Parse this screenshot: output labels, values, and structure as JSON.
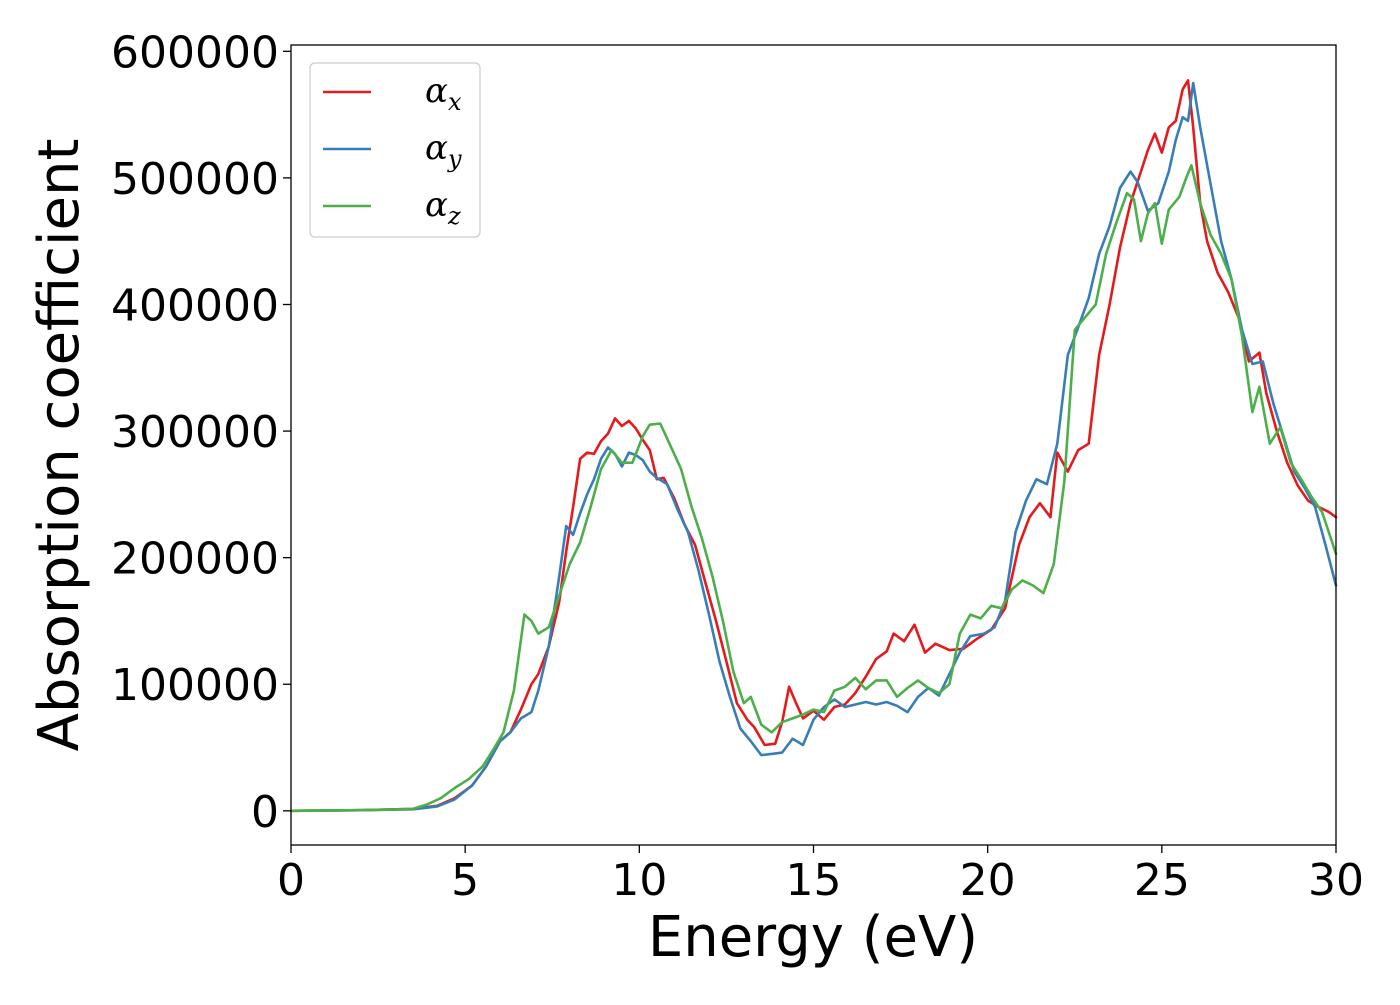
{
  "chart_data": {
    "type": "line",
    "title": "",
    "xlabel": "Energy (eV)",
    "ylabel": "Absorption coefficient",
    "xlim": [
      0,
      30
    ],
    "ylim": [
      -27000,
      605000
    ],
    "x_ticks": [
      0,
      5,
      10,
      15,
      20,
      25,
      30
    ],
    "x_tick_labels": [
      "0",
      "5",
      "10",
      "15",
      "20",
      "25",
      "30"
    ],
    "y_ticks": [
      0,
      100000,
      200000,
      300000,
      400000,
      500000,
      600000
    ],
    "y_tick_labels": [
      "0",
      "100000",
      "200000",
      "300000",
      "400000",
      "500000",
      "600000"
    ],
    "grid": false,
    "legend_position": "top-left",
    "series": [
      {
        "name": "αx",
        "symbol": "α",
        "subscript": "x",
        "color": "#e41a1c",
        "points": [
          [
            0,
            0
          ],
          [
            2,
            500
          ],
          [
            3.5,
            1500
          ],
          [
            4.2,
            4000
          ],
          [
            4.7,
            10000
          ],
          [
            5.2,
            20000
          ],
          [
            5.6,
            35000
          ],
          [
            6,
            55000
          ],
          [
            6.3,
            62000
          ],
          [
            6.6,
            80000
          ],
          [
            6.9,
            100000
          ],
          [
            7.1,
            108000
          ],
          [
            7.4,
            130000
          ],
          [
            7.7,
            165000
          ],
          [
            7.9,
            205000
          ],
          [
            8.1,
            240000
          ],
          [
            8.3,
            278000
          ],
          [
            8.5,
            283000
          ],
          [
            8.7,
            282000
          ],
          [
            8.9,
            292000
          ],
          [
            9.1,
            298000
          ],
          [
            9.3,
            310000
          ],
          [
            9.5,
            304000
          ],
          [
            9.7,
            308000
          ],
          [
            9.9,
            302000
          ],
          [
            10.1,
            293000
          ],
          [
            10.3,
            285000
          ],
          [
            10.5,
            262000
          ],
          [
            10.7,
            263000
          ],
          [
            11,
            247000
          ],
          [
            11.3,
            226000
          ],
          [
            11.6,
            210000
          ],
          [
            11.9,
            180000
          ],
          [
            12.2,
            150000
          ],
          [
            12.5,
            118000
          ],
          [
            12.8,
            85000
          ],
          [
            13.1,
            72000
          ],
          [
            13.3,
            66000
          ],
          [
            13.6,
            52000
          ],
          [
            13.9,
            53000
          ],
          [
            14.1,
            70000
          ],
          [
            14.3,
            98000
          ],
          [
            14.5,
            85000
          ],
          [
            14.7,
            73000
          ],
          [
            15,
            79000
          ],
          [
            15.3,
            72000
          ],
          [
            15.6,
            82000
          ],
          [
            15.9,
            84000
          ],
          [
            16.2,
            93000
          ],
          [
            16.5,
            106000
          ],
          [
            16.8,
            120000
          ],
          [
            17.1,
            126000
          ],
          [
            17.3,
            140000
          ],
          [
            17.6,
            134000
          ],
          [
            17.9,
            147000
          ],
          [
            18.2,
            125000
          ],
          [
            18.5,
            132000
          ],
          [
            18.9,
            127000
          ],
          [
            19.3,
            128000
          ],
          [
            19.7,
            136000
          ],
          [
            20.1,
            143000
          ],
          [
            20.5,
            160000
          ],
          [
            20.9,
            210000
          ],
          [
            21.2,
            232000
          ],
          [
            21.5,
            243000
          ],
          [
            21.8,
            232000
          ],
          [
            22,
            283000
          ],
          [
            22.3,
            268000
          ],
          [
            22.6,
            285000
          ],
          [
            22.9,
            290000
          ],
          [
            23.2,
            360000
          ],
          [
            23.5,
            400000
          ],
          [
            23.8,
            445000
          ],
          [
            24.1,
            480000
          ],
          [
            24.4,
            505000
          ],
          [
            24.6,
            522000
          ],
          [
            24.8,
            535000
          ],
          [
            25,
            520000
          ],
          [
            25.2,
            540000
          ],
          [
            25.4,
            545000
          ],
          [
            25.6,
            570000
          ],
          [
            25.75,
            577000
          ],
          [
            25.9,
            540000
          ],
          [
            26.1,
            480000
          ],
          [
            26.3,
            450000
          ],
          [
            26.6,
            425000
          ],
          [
            26.9,
            410000
          ],
          [
            27.2,
            390000
          ],
          [
            27.5,
            355000
          ],
          [
            27.8,
            362000
          ],
          [
            28,
            330000
          ],
          [
            28.3,
            300000
          ],
          [
            28.6,
            275000
          ],
          [
            28.9,
            257000
          ],
          [
            29.2,
            245000
          ],
          [
            29.5,
            240000
          ],
          [
            29.8,
            236000
          ],
          [
            30,
            232000
          ]
        ]
      },
      {
        "name": "αy",
        "symbol": "α",
        "subscript": "y",
        "color": "#377eb8",
        "points": [
          [
            0,
            0
          ],
          [
            2,
            500
          ],
          [
            3.5,
            1200
          ],
          [
            4.2,
            3500
          ],
          [
            4.7,
            9000
          ],
          [
            5.2,
            20000
          ],
          [
            5.6,
            35000
          ],
          [
            6,
            55000
          ],
          [
            6.3,
            62000
          ],
          [
            6.6,
            73000
          ],
          [
            6.9,
            78000
          ],
          [
            7.1,
            95000
          ],
          [
            7.4,
            130000
          ],
          [
            7.7,
            185000
          ],
          [
            7.9,
            225000
          ],
          [
            8.1,
            218000
          ],
          [
            8.3,
            235000
          ],
          [
            8.5,
            250000
          ],
          [
            8.7,
            262000
          ],
          [
            8.9,
            278000
          ],
          [
            9.1,
            287000
          ],
          [
            9.3,
            282000
          ],
          [
            9.5,
            272000
          ],
          [
            9.7,
            283000
          ],
          [
            9.9,
            281000
          ],
          [
            10.1,
            277000
          ],
          [
            10.3,
            268000
          ],
          [
            10.5,
            263000
          ],
          [
            10.8,
            258000
          ],
          [
            11.1,
            238000
          ],
          [
            11.4,
            220000
          ],
          [
            11.7,
            190000
          ],
          [
            12,
            155000
          ],
          [
            12.3,
            118000
          ],
          [
            12.6,
            90000
          ],
          [
            12.9,
            65000
          ],
          [
            13.2,
            55000
          ],
          [
            13.5,
            44000
          ],
          [
            13.8,
            45000
          ],
          [
            14.1,
            46000
          ],
          [
            14.4,
            57000
          ],
          [
            14.7,
            52000
          ],
          [
            15,
            72000
          ],
          [
            15.3,
            82000
          ],
          [
            15.6,
            88000
          ],
          [
            15.9,
            82000
          ],
          [
            16.2,
            84000
          ],
          [
            16.5,
            86000
          ],
          [
            16.8,
            84000
          ],
          [
            17.1,
            86000
          ],
          [
            17.4,
            83000
          ],
          [
            17.7,
            78000
          ],
          [
            18,
            90000
          ],
          [
            18.3,
            97000
          ],
          [
            18.6,
            91000
          ],
          [
            18.9,
            108000
          ],
          [
            19.2,
            125000
          ],
          [
            19.5,
            138000
          ],
          [
            19.9,
            140000
          ],
          [
            20.2,
            145000
          ],
          [
            20.5,
            166000
          ],
          [
            20.8,
            220000
          ],
          [
            21.1,
            245000
          ],
          [
            21.4,
            262000
          ],
          [
            21.7,
            258000
          ],
          [
            22,
            290000
          ],
          [
            22.3,
            360000
          ],
          [
            22.6,
            382000
          ],
          [
            22.9,
            405000
          ],
          [
            23.2,
            440000
          ],
          [
            23.5,
            462000
          ],
          [
            23.8,
            492000
          ],
          [
            24.1,
            505000
          ],
          [
            24.3,
            497000
          ],
          [
            24.6,
            474000
          ],
          [
            24.9,
            480000
          ],
          [
            25.2,
            505000
          ],
          [
            25.4,
            530000
          ],
          [
            25.6,
            548000
          ],
          [
            25.75,
            545000
          ],
          [
            25.9,
            575000
          ],
          [
            26.1,
            540000
          ],
          [
            26.4,
            495000
          ],
          [
            26.7,
            450000
          ],
          [
            27,
            420000
          ],
          [
            27.3,
            380000
          ],
          [
            27.6,
            353000
          ],
          [
            27.9,
            355000
          ],
          [
            28.2,
            322000
          ],
          [
            28.5,
            295000
          ],
          [
            28.8,
            268000
          ],
          [
            29.1,
            255000
          ],
          [
            29.4,
            240000
          ],
          [
            29.7,
            210000
          ],
          [
            30,
            178000
          ]
        ]
      },
      {
        "name": "αz",
        "symbol": "α",
        "subscript": "z",
        "color": "#4daf4a",
        "points": [
          [
            0,
            0
          ],
          [
            2,
            500
          ],
          [
            3.5,
            1500
          ],
          [
            3.9,
            5000
          ],
          [
            4.3,
            10000
          ],
          [
            4.7,
            18000
          ],
          [
            5.1,
            25000
          ],
          [
            5.5,
            35000
          ],
          [
            5.8,
            48000
          ],
          [
            6.1,
            62000
          ],
          [
            6.4,
            95000
          ],
          [
            6.7,
            155000
          ],
          [
            6.9,
            150000
          ],
          [
            7.1,
            140000
          ],
          [
            7.4,
            145000
          ],
          [
            7.7,
            170000
          ],
          [
            8,
            195000
          ],
          [
            8.3,
            212000
          ],
          [
            8.6,
            240000
          ],
          [
            8.9,
            270000
          ],
          [
            9.2,
            285000
          ],
          [
            9.5,
            275000
          ],
          [
            9.8,
            275000
          ],
          [
            10.1,
            296000
          ],
          [
            10.3,
            305000
          ],
          [
            10.6,
            306000
          ],
          [
            10.9,
            288000
          ],
          [
            11.2,
            270000
          ],
          [
            11.5,
            240000
          ],
          [
            11.8,
            215000
          ],
          [
            12.1,
            185000
          ],
          [
            12.4,
            150000
          ],
          [
            12.7,
            110000
          ],
          [
            13,
            85000
          ],
          [
            13.2,
            90000
          ],
          [
            13.5,
            68000
          ],
          [
            13.8,
            62000
          ],
          [
            14.1,
            70000
          ],
          [
            14.4,
            73000
          ],
          [
            14.7,
            76000
          ],
          [
            15,
            80000
          ],
          [
            15.3,
            78000
          ],
          [
            15.6,
            95000
          ],
          [
            15.9,
            98000
          ],
          [
            16.2,
            105000
          ],
          [
            16.5,
            96000
          ],
          [
            16.8,
            103000
          ],
          [
            17.1,
            103000
          ],
          [
            17.4,
            90000
          ],
          [
            17.7,
            97000
          ],
          [
            18,
            103000
          ],
          [
            18.3,
            97000
          ],
          [
            18.6,
            93000
          ],
          [
            18.9,
            100000
          ],
          [
            19.2,
            140000
          ],
          [
            19.5,
            155000
          ],
          [
            19.8,
            152000
          ],
          [
            20.1,
            162000
          ],
          [
            20.4,
            160000
          ],
          [
            20.7,
            175000
          ],
          [
            21,
            182000
          ],
          [
            21.3,
            178000
          ],
          [
            21.6,
            172000
          ],
          [
            21.9,
            195000
          ],
          [
            22.2,
            260000
          ],
          [
            22.5,
            380000
          ],
          [
            22.8,
            390000
          ],
          [
            23.1,
            400000
          ],
          [
            23.4,
            440000
          ],
          [
            23.7,
            465000
          ],
          [
            24,
            488000
          ],
          [
            24.2,
            483000
          ],
          [
            24.4,
            450000
          ],
          [
            24.6,
            472000
          ],
          [
            24.8,
            480000
          ],
          [
            25,
            448000
          ],
          [
            25.2,
            475000
          ],
          [
            25.5,
            485000
          ],
          [
            25.7,
            500000
          ],
          [
            25.85,
            510000
          ],
          [
            26.1,
            480000
          ],
          [
            26.4,
            455000
          ],
          [
            26.7,
            440000
          ],
          [
            27,
            420000
          ],
          [
            27.3,
            375000
          ],
          [
            27.6,
            315000
          ],
          [
            27.8,
            335000
          ],
          [
            28.1,
            290000
          ],
          [
            28.4,
            303000
          ],
          [
            28.7,
            275000
          ],
          [
            29,
            262000
          ],
          [
            29.3,
            248000
          ],
          [
            29.6,
            236000
          ],
          [
            30,
            203000
          ]
        ]
      }
    ]
  }
}
